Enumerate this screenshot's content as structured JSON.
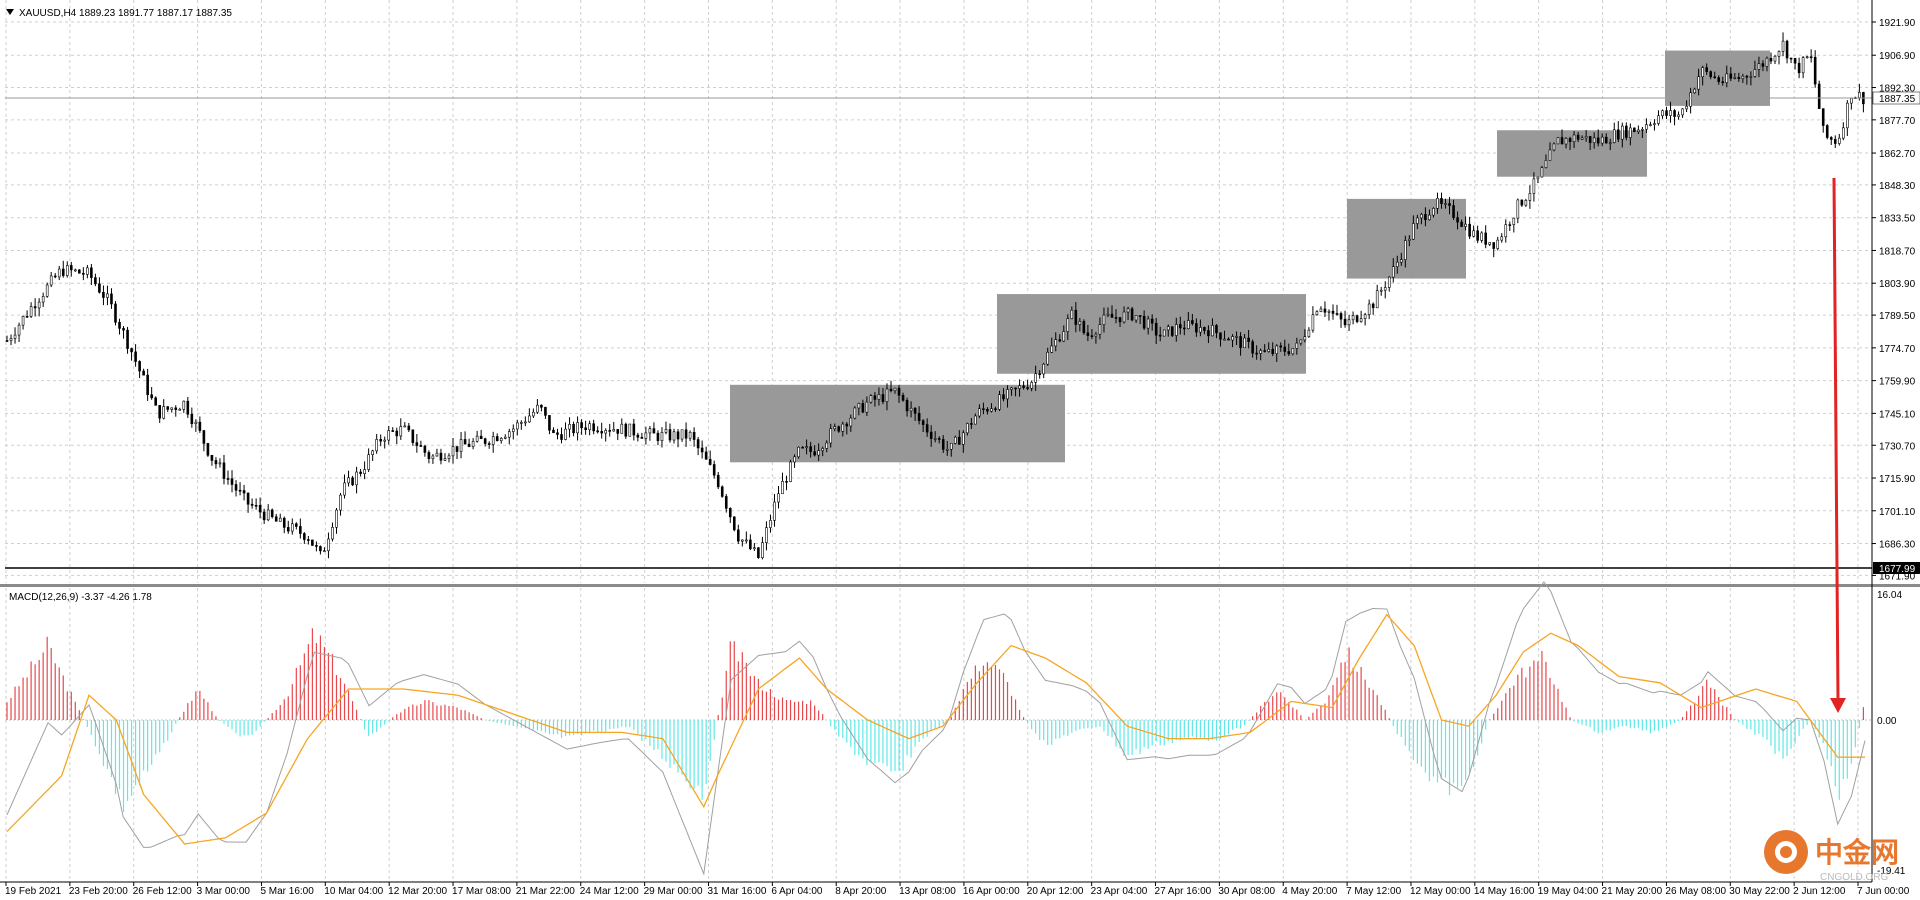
{
  "symbol_header": {
    "text": "XAUUSD,H4  1889.23 1891.77 1887.17 1887.35"
  },
  "macd_header": {
    "text": "MACD(12,26,9) -3.37 -4.26 1.78"
  },
  "price_labels": [
    "1921.90",
    "1906.90",
    "1892.30",
    "1877.70",
    "1862.70",
    "1848.30",
    "1833.50",
    "1818.70",
    "1803.90",
    "1789.50",
    "1774.70",
    "1759.90",
    "1745.10",
    "1730.70",
    "1715.90",
    "1701.10",
    "1686.30",
    "1671.90"
  ],
  "current_price_label": "1887.35",
  "support_label": "1677.99",
  "macd_axis_labels": {
    "top": "16.04",
    "zero": "0.00",
    "bottom": "-19.41"
  },
  "time_labels": [
    "19 Feb 2021",
    "23 Feb 20:00",
    "26 Feb 12:00",
    "3 Mar 00:00",
    "5 Mar 16:00",
    "10 Mar 04:00",
    "12 Mar 20:00",
    "17 Mar 08:00",
    "21 Mar 22:00",
    "24 Mar 12:00",
    "29 Mar 00:00",
    "31 Mar 16:00",
    "6 Apr 04:00",
    "8 Apr 20:00",
    "13 Apr 08:00",
    "16 Apr 00:00",
    "20 Apr 12:00",
    "23 Apr 04:00",
    "27 Apr 16:00",
    "30 Apr 08:00",
    "4 May 20:00",
    "7 May 12:00",
    "12 May 00:00",
    "14 May 16:00",
    "19 May 04:00",
    "21 May 20:00",
    "26 May 08:00",
    "30 May 22:00",
    "2 Jun 12:00",
    "7 Jun 00:00"
  ],
  "watermark": {
    "text": "中金网",
    "subtext": "CNGOLD.ORG"
  },
  "colors": {
    "candle": "#000000",
    "consolidation_box": "#999999",
    "macd_positive": "#e8474b",
    "macd_negative": "#5ee8e8",
    "signal_line": "#f5a623",
    "macd_line": "#a0a0a0",
    "arrow": "#e32222",
    "grid": "#c8c8c8",
    "watermark_orange": "#e8772e"
  },
  "chart_data": {
    "type": "candlestick",
    "symbol": "XAUUSD",
    "timeframe": "H4",
    "ohlc_last": {
      "open": 1889.23,
      "high": 1891.77,
      "low": 1887.17,
      "close": 1887.35
    },
    "price_range": [
      1671.9,
      1921.9
    ],
    "support_level": 1677.99,
    "current_price": 1887.35,
    "close_path": [
      [
        0,
        1778
      ],
      [
        4,
        1795
      ],
      [
        8,
        1810
      ],
      [
        12,
        1808
      ],
      [
        15,
        1795
      ],
      [
        18,
        1775
      ],
      [
        22,
        1745
      ],
      [
        26,
        1750
      ],
      [
        30,
        1725
      ],
      [
        35,
        1705
      ],
      [
        40,
        1695
      ],
      [
        44,
        1690
      ],
      [
        46,
        1680
      ],
      [
        49,
        1710
      ],
      [
        52,
        1720
      ],
      [
        55,
        1735
      ],
      [
        58,
        1738
      ],
      [
        62,
        1725
      ],
      [
        66,
        1730
      ],
      [
        70,
        1733
      ],
      [
        74,
        1738
      ],
      [
        78,
        1748
      ],
      [
        80,
        1735
      ],
      [
        85,
        1740
      ],
      [
        90,
        1738
      ],
      [
        95,
        1735
      ],
      [
        100,
        1735
      ],
      [
        104,
        1715
      ],
      [
        107,
        1690
      ],
      [
        110,
        1680
      ],
      [
        113,
        1710
      ],
      [
        116,
        1728
      ],
      [
        118,
        1728
      ],
      [
        122,
        1740
      ],
      [
        126,
        1750
      ],
      [
        130,
        1755
      ],
      [
        134,
        1740
      ],
      [
        138,
        1728
      ],
      [
        142,
        1745
      ],
      [
        146,
        1752
      ],
      [
        150,
        1760
      ],
      [
        153,
        1775
      ],
      [
        156,
        1790
      ],
      [
        158,
        1780
      ],
      [
        161,
        1788
      ],
      [
        165,
        1790
      ],
      [
        169,
        1780
      ],
      [
        172,
        1785
      ],
      [
        176,
        1783
      ],
      [
        180,
        1778
      ],
      [
        184,
        1772
      ],
      [
        189,
        1775
      ],
      [
        192,
        1795
      ],
      [
        196,
        1785
      ],
      [
        200,
        1795
      ],
      [
        203,
        1810
      ],
      [
        206,
        1830
      ],
      [
        209,
        1840
      ],
      [
        212,
        1835
      ],
      [
        215,
        1825
      ],
      [
        218,
        1822
      ],
      [
        221,
        1838
      ],
      [
        224,
        1850
      ],
      [
        227,
        1868
      ],
      [
        230,
        1870
      ],
      [
        233,
        1868
      ],
      [
        236,
        1872
      ],
      [
        239,
        1874
      ],
      [
        242,
        1880
      ],
      [
        245,
        1880
      ],
      [
        248,
        1900
      ],
      [
        251,
        1895
      ],
      [
        254,
        1897
      ],
      [
        257,
        1903
      ],
      [
        260,
        1912
      ],
      [
        262,
        1900
      ],
      [
        264,
        1907
      ],
      [
        266,
        1870
      ],
      [
        268,
        1868
      ],
      [
        270,
        1890
      ],
      [
        272,
        1887.35
      ]
    ],
    "consolidation_boxes": [
      {
        "from_label": "31 Mar 16:00",
        "price_high": 1758,
        "price_low": 1723
      },
      {
        "from_label": "16 Apr 00:00",
        "price_high": 1799,
        "price_low": 1763
      },
      {
        "from_label": "4 May 20:00",
        "price_high": 1842,
        "price_low": 1806
      },
      {
        "from_label": "14 May 16:00",
        "price_high": 1873,
        "price_low": 1852
      },
      {
        "from_label": "26 May 08:00",
        "price_high": 1909,
        "price_low": 1884
      }
    ],
    "macd_indicator": {
      "name": "MACD(12,26,9)",
      "macd": -3.37,
      "signal": -4.26,
      "histogram": 1.78,
      "axis_range": [
        -19.41,
        16.04
      ],
      "histogram_path": [
        [
          0,
          3
        ],
        [
          6,
          12
        ],
        [
          9,
          5
        ],
        [
          13,
          -4
        ],
        [
          17,
          -14
        ],
        [
          21,
          -8
        ],
        [
          25,
          0
        ],
        [
          28,
          5
        ],
        [
          31,
          0
        ],
        [
          35,
          -3
        ],
        [
          38,
          0
        ],
        [
          41,
          4
        ],
        [
          45,
          14
        ],
        [
          49,
          7
        ],
        [
          53,
          -3
        ],
        [
          57,
          1
        ],
        [
          61,
          3
        ],
        [
          66,
          2
        ],
        [
          70,
          0
        ],
        [
          74,
          -1
        ],
        [
          78,
          -2
        ],
        [
          82,
          -3
        ],
        [
          86,
          -2
        ],
        [
          91,
          -1
        ],
        [
          95,
          -5
        ],
        [
          99,
          -9
        ],
        [
          102,
          -12
        ],
        [
          104,
          0
        ],
        [
          106,
          12
        ],
        [
          110,
          6
        ],
        [
          114,
          3
        ],
        [
          118,
          3
        ],
        [
          122,
          -3
        ],
        [
          126,
          -7
        ],
        [
          130,
          -9
        ],
        [
          134,
          -3
        ],
        [
          138,
          0
        ],
        [
          140,
          5
        ],
        [
          143,
          10
        ],
        [
          146,
          7
        ],
        [
          149,
          0
        ],
        [
          152,
          -4
        ],
        [
          156,
          -2
        ],
        [
          160,
          -1
        ],
        [
          164,
          -6
        ],
        [
          168,
          -4
        ],
        [
          173,
          -3
        ],
        [
          177,
          -3
        ],
        [
          181,
          -1
        ],
        [
          186,
          5
        ],
        [
          190,
          0
        ],
        [
          193,
          3
        ],
        [
          196,
          11
        ],
        [
          200,
          5
        ],
        [
          204,
          -3
        ],
        [
          209,
          -10
        ],
        [
          213,
          -12
        ],
        [
          217,
          0
        ],
        [
          221,
          7
        ],
        [
          225,
          10
        ],
        [
          229,
          0
        ],
        [
          233,
          -2
        ],
        [
          237,
          -1
        ],
        [
          241,
          -2
        ],
        [
          245,
          0
        ],
        [
          249,
          6
        ],
        [
          253,
          0
        ],
        [
          257,
          -3
        ],
        [
          260,
          -6
        ],
        [
          264,
          0
        ],
        [
          266,
          -4
        ],
        [
          268,
          -12
        ],
        [
          270,
          -7
        ],
        [
          272,
          3
        ]
      ],
      "signal_path": [
        [
          0,
          -18
        ],
        [
          8,
          -9
        ],
        [
          12,
          4
        ],
        [
          16,
          0
        ],
        [
          20,
          -12
        ],
        [
          26,
          -20
        ],
        [
          32,
          -19
        ],
        [
          38,
          -15
        ],
        [
          44,
          -3
        ],
        [
          50,
          5
        ],
        [
          58,
          5
        ],
        [
          66,
          4
        ],
        [
          74,
          1
        ],
        [
          82,
          -2
        ],
        [
          90,
          -2
        ],
        [
          96,
          -3
        ],
        [
          102,
          -14
        ],
        [
          104,
          -9
        ],
        [
          110,
          5
        ],
        [
          116,
          10
        ],
        [
          120,
          5
        ],
        [
          126,
          0
        ],
        [
          132,
          -3
        ],
        [
          137,
          -1
        ],
        [
          142,
          6
        ],
        [
          147,
          12
        ],
        [
          152,
          10
        ],
        [
          158,
          6
        ],
        [
          164,
          -1
        ],
        [
          170,
          -3
        ],
        [
          176,
          -3
        ],
        [
          182,
          -2
        ],
        [
          188,
          3
        ],
        [
          194,
          2
        ],
        [
          198,
          10
        ],
        [
          202,
          17
        ],
        [
          206,
          12
        ],
        [
          210,
          0
        ],
        [
          214,
          -1
        ],
        [
          218,
          4
        ],
        [
          222,
          11
        ],
        [
          226,
          14
        ],
        [
          230,
          12
        ],
        [
          236,
          7
        ],
        [
          242,
          6
        ],
        [
          248,
          2
        ],
        [
          256,
          5
        ],
        [
          262,
          3
        ],
        [
          268,
          -6
        ],
        [
          272,
          -6
        ]
      ]
    }
  }
}
